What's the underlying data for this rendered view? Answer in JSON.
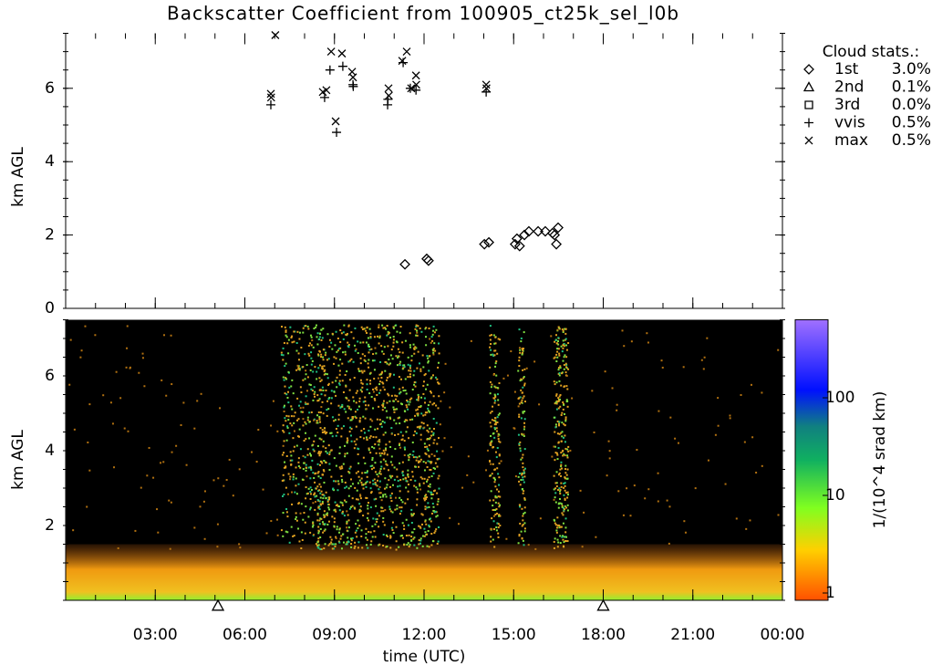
{
  "chart_data": [
    {
      "type": "scatter",
      "title": "Backscatter Coefficient from 100905_ct25k_sel_l0b",
      "ylabel": "km AGL",
      "xlim": [
        0,
        24
      ],
      "ylim": [
        0,
        7.5
      ],
      "yticks": [
        0,
        2,
        4,
        6
      ],
      "legend_title": "Cloud stats.:",
      "legend": "upper-right-outside",
      "series": [
        {
          "name": "1st",
          "stat": "3.0%",
          "marker": "diamond",
          "color": "#000000",
          "x": [
            11.36,
            12.09,
            12.15,
            14.02,
            14.17,
            15.05,
            15.11,
            15.2,
            15.36,
            15.51,
            15.82,
            16.06,
            16.3,
            16.43,
            16.49,
            16.37
          ],
          "values": [
            1.2,
            1.35,
            1.3,
            1.75,
            1.8,
            1.75,
            1.9,
            1.7,
            2.0,
            2.1,
            2.1,
            2.1,
            2.05,
            1.75,
            2.2,
            2.0
          ]
        },
        {
          "name": "2nd",
          "stat": "0.1%",
          "marker": "triangle",
          "color": "#000000",
          "x": [],
          "values": []
        },
        {
          "name": "3rd",
          "stat": "0.0%",
          "marker": "square",
          "color": "#000000",
          "x": [],
          "values": []
        },
        {
          "name": "vvis",
          "stat": "0.5%",
          "marker": "plus",
          "color": "#000000",
          "x": [
            6.87,
            8.67,
            8.85,
            9.07,
            9.28,
            9.62,
            9.63,
            10.78,
            10.79,
            11.3,
            11.54,
            11.73,
            14.08
          ],
          "values": [
            5.55,
            5.75,
            6.5,
            4.8,
            6.6,
            6.1,
            6.05,
            5.55,
            5.7,
            6.7,
            6.0,
            5.95,
            5.9
          ]
        },
        {
          "name": "max",
          "stat": "0.5%",
          "marker": "cross",
          "color": "#000000",
          "x": [
            6.87,
            6.88,
            7.02,
            8.61,
            8.73,
            8.89,
            9.04,
            9.25,
            9.59,
            9.62,
            10.81,
            10.82,
            11.27,
            11.42,
            11.57,
            11.73,
            11.74,
            14.08,
            14.09
          ],
          "values": [
            5.85,
            5.75,
            7.45,
            5.9,
            5.95,
            7.0,
            5.1,
            6.95,
            6.45,
            6.3,
            6.0,
            5.8,
            6.75,
            7.0,
            6.0,
            6.35,
            6.1,
            6.1,
            6.0
          ]
        }
      ]
    },
    {
      "type": "heatmap",
      "ylabel": "km AGL",
      "xlabel": "time (UTC)",
      "xlim": [
        0,
        24
      ],
      "xticks": [
        {
          "value": 3,
          "label": "03:00"
        },
        {
          "value": 6,
          "label": "06:00"
        },
        {
          "value": 9,
          "label": "09:00"
        },
        {
          "value": 12,
          "label": "12:00"
        },
        {
          "value": 15,
          "label": "15:00"
        },
        {
          "value": 18,
          "label": "18:00"
        },
        {
          "value": 21,
          "label": "21:00"
        },
        {
          "value": 24,
          "label": "00:00"
        }
      ],
      "ylim": [
        0,
        7.5
      ],
      "yticks": [
        2,
        4,
        6
      ],
      "colorbar_label": "1/(10^4 srad km)",
      "clim": [
        1,
        630
      ],
      "cticks": [
        1,
        10,
        100
      ],
      "color_scale": "log",
      "triangle_marks_x": [
        5.1,
        18.0
      ]
    }
  ]
}
